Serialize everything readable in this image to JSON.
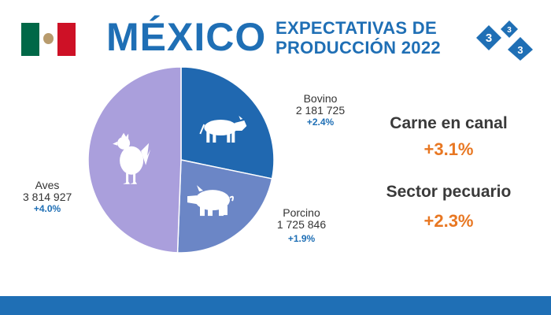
{
  "header": {
    "country": "MÉXICO",
    "headline_line1": "EXPECTATIVAS DE",
    "headline_line2": "PRODUCCIÓN 2022",
    "logo_digits": [
      "3",
      "3",
      "3"
    ]
  },
  "flag": {
    "colors": [
      "#006847",
      "#ffffff",
      "#ce1126"
    ]
  },
  "chart_data": {
    "type": "pie",
    "start_angle_deg": 0,
    "direction": "clockwise",
    "slices": [
      {
        "label": "Bovino",
        "value": 2181725,
        "value_text": "2 181 725",
        "change": "+2.4%",
        "color": "#2068b0",
        "icon": "cow-icon"
      },
      {
        "label": "Porcino",
        "value": 1725846,
        "value_text": "1 725 846",
        "change": "+1.9%",
        "color": "#6b86c6",
        "icon": "pig-icon"
      },
      {
        "label": "Aves",
        "value": 3814927,
        "value_text": "3 814 927",
        "change": "+4.0%",
        "color": "#aa9fdc",
        "icon": "chicken-icon"
      }
    ]
  },
  "metrics": [
    {
      "title": "Carne en canal",
      "value": "+3.1%"
    },
    {
      "title": "Sector pecuario",
      "value": "+2.3%"
    }
  ],
  "colors": {
    "brand_blue": "#1f6fb5",
    "accent_orange": "#e87722",
    "text_gray": "#3a3a3a"
  }
}
